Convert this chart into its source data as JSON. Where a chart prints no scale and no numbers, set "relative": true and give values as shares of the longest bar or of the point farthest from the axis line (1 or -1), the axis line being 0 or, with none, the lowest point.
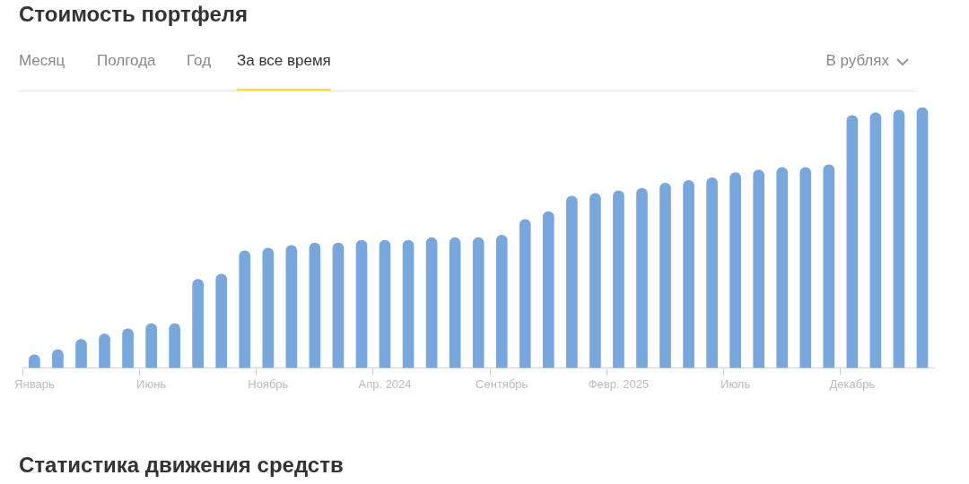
{
  "chart_data": {
    "type": "bar",
    "title": "Стоимость портфеля",
    "relative": true,
    "color": "#77a7dc",
    "grid": false,
    "legend": false,
    "categories": [
      "Январь",
      null,
      null,
      null,
      null,
      "Июнь",
      null,
      null,
      null,
      null,
      "Ноябрь",
      null,
      null,
      null,
      null,
      "Апр. 2024",
      null,
      null,
      null,
      null,
      "Сентябрь",
      null,
      null,
      null,
      null,
      "Февр. 2025",
      null,
      null,
      null,
      null,
      "Июль",
      null,
      null,
      null,
      null,
      "Декабрь",
      null,
      null,
      null
    ],
    "values": [
      0.05,
      0.07,
      0.11,
      0.13,
      0.15,
      0.17,
      0.17,
      0.34,
      0.36,
      0.45,
      0.46,
      0.47,
      0.48,
      0.48,
      0.49,
      0.49,
      0.49,
      0.5,
      0.5,
      0.5,
      0.51,
      0.57,
      0.6,
      0.66,
      0.67,
      0.68,
      0.69,
      0.71,
      0.72,
      0.73,
      0.75,
      0.76,
      0.77,
      0.77,
      0.78,
      0.97,
      0.98,
      0.99,
      1
    ],
    "annotations": [
      "Месяц",
      "Полгода",
      "Год",
      "За все время",
      "В рублях",
      "Статистика движения средств"
    ]
  }
}
